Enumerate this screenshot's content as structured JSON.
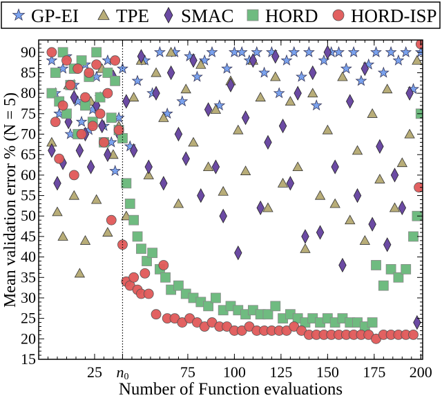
{
  "chart_data": {
    "type": "scatter",
    "xlabel": "Number of Function evaluations",
    "ylabel": "Mean validation error % (N = 5)",
    "xlim": [
      -5,
      201
    ],
    "ylim": [
      15,
      93
    ],
    "xticks": [
      {
        "v": 25,
        "label": "25"
      },
      {
        "v": 40,
        "label": "n0"
      },
      {
        "v": 75,
        "label": "75"
      },
      {
        "v": 100,
        "label": "100"
      },
      {
        "v": 125,
        "label": "125"
      },
      {
        "v": 150,
        "label": "150"
      },
      {
        "v": 175,
        "label": "175"
      },
      {
        "v": 200,
        "label": "200"
      }
    ],
    "yticks": [
      15,
      20,
      25,
      30,
      35,
      40,
      45,
      50,
      55,
      60,
      65,
      70,
      75,
      80,
      85,
      90
    ],
    "vline": {
      "x": 40,
      "style": "dotted"
    },
    "legend": "top",
    "series": [
      {
        "name": "GP-EI",
        "marker": "star",
        "color": "#7aa2ee",
        "points": [
          [
            2,
            88
          ],
          [
            4,
            80
          ],
          [
            6,
            75
          ],
          [
            8,
            86
          ],
          [
            10,
            89
          ],
          [
            12,
            70
          ],
          [
            14,
            82
          ],
          [
            16,
            78
          ],
          [
            18,
            73
          ],
          [
            20,
            87
          ],
          [
            22,
            71
          ],
          [
            24,
            76
          ],
          [
            26,
            84
          ],
          [
            28,
            79
          ],
          [
            30,
            72
          ],
          [
            32,
            88
          ],
          [
            34,
            68
          ],
          [
            36,
            61
          ],
          [
            38,
            74
          ],
          [
            40,
            86
          ],
          [
            44,
            67
          ],
          [
            48,
            83
          ],
          [
            52,
            88
          ],
          [
            56,
            80
          ],
          [
            60,
            90
          ],
          [
            64,
            75
          ],
          [
            68,
            90
          ],
          [
            72,
            78
          ],
          [
            76,
            89
          ],
          [
            80,
            84
          ],
          [
            84,
            88
          ],
          [
            88,
            90
          ],
          [
            92,
            77
          ],
          [
            96,
            86
          ],
          [
            100,
            90
          ],
          [
            104,
            90
          ],
          [
            108,
            88
          ],
          [
            112,
            90
          ],
          [
            116,
            85
          ],
          [
            120,
            90
          ],
          [
            124,
            80
          ],
          [
            128,
            88
          ],
          [
            132,
            90
          ],
          [
            136,
            84
          ],
          [
            140,
            90
          ],
          [
            144,
            77
          ],
          [
            148,
            88
          ],
          [
            152,
            90
          ],
          [
            156,
            90
          ],
          [
            160,
            86
          ],
          [
            164,
            90
          ],
          [
            168,
            83
          ],
          [
            172,
            87
          ],
          [
            176,
            90
          ],
          [
            180,
            85
          ],
          [
            184,
            90
          ],
          [
            188,
            88
          ],
          [
            192,
            90
          ],
          [
            196,
            81
          ],
          [
            200,
            90
          ]
        ]
      },
      {
        "name": "TPE",
        "marker": "triangle",
        "color": "#b8ad78",
        "points": [
          [
            2,
            68
          ],
          [
            5,
            51
          ],
          [
            8,
            45
          ],
          [
            11,
            82
          ],
          [
            14,
            55
          ],
          [
            17,
            36
          ],
          [
            20,
            44
          ],
          [
            23,
            78
          ],
          [
            26,
            54
          ],
          [
            29,
            86
          ],
          [
            32,
            46
          ],
          [
            35,
            65
          ],
          [
            38,
            72
          ],
          [
            42,
            50
          ],
          [
            46,
            79
          ],
          [
            50,
            88
          ],
          [
            54,
            60
          ],
          [
            58,
            85
          ],
          [
            62,
            74
          ],
          [
            66,
            90
          ],
          [
            70,
            53
          ],
          [
            74,
            81
          ],
          [
            78,
            68
          ],
          [
            82,
            87
          ],
          [
            86,
            62
          ],
          [
            90,
            76
          ],
          [
            94,
            56
          ],
          [
            98,
            83
          ],
          [
            102,
            71
          ],
          [
            106,
            61
          ],
          [
            110,
            88
          ],
          [
            114,
            79
          ],
          [
            118,
            52
          ],
          [
            122,
            84
          ],
          [
            126,
            58
          ],
          [
            130,
            78
          ],
          [
            134,
            62
          ],
          [
            138,
            42
          ],
          [
            142,
            80
          ],
          [
            146,
            55
          ],
          [
            150,
            71
          ],
          [
            154,
            53
          ],
          [
            158,
            84
          ],
          [
            162,
            49
          ],
          [
            166,
            66
          ],
          [
            170,
            44
          ],
          [
            174,
            75
          ],
          [
            178,
            59
          ],
          [
            182,
            81
          ],
          [
            186,
            52
          ],
          [
            190,
            63
          ],
          [
            194,
            70
          ],
          [
            198,
            88
          ]
        ]
      },
      {
        "name": "SMAC",
        "marker": "diamond",
        "color": "#6b4aa3",
        "points": [
          [
            2,
            66
          ],
          [
            5,
            58
          ],
          [
            8,
            63
          ],
          [
            11,
            73
          ],
          [
            14,
            79
          ],
          [
            17,
            66
          ],
          [
            20,
            70
          ],
          [
            23,
            62
          ],
          [
            26,
            77
          ],
          [
            29,
            72
          ],
          [
            32,
            65
          ],
          [
            35,
            84
          ],
          [
            38,
            70
          ],
          [
            42,
            78
          ],
          [
            46,
            66
          ],
          [
            50,
            89
          ],
          [
            54,
            62
          ],
          [
            58,
            80
          ],
          [
            62,
            58
          ],
          [
            66,
            85
          ],
          [
            70,
            70
          ],
          [
            74,
            64
          ],
          [
            78,
            88
          ],
          [
            82,
            55
          ],
          [
            86,
            76
          ],
          [
            90,
            62
          ],
          [
            94,
            50
          ],
          [
            98,
            82
          ],
          [
            102,
            41
          ],
          [
            106,
            74
          ],
          [
            110,
            88
          ],
          [
            114,
            52
          ],
          [
            118,
            68
          ],
          [
            122,
            89
          ],
          [
            126,
            72
          ],
          [
            130,
            58
          ],
          [
            134,
            80
          ],
          [
            138,
            45
          ],
          [
            142,
            85
          ],
          [
            146,
            46
          ],
          [
            150,
            90
          ],
          [
            154,
            62
          ],
          [
            158,
            38
          ],
          [
            162,
            78
          ],
          [
            166,
            55
          ],
          [
            170,
            86
          ],
          [
            174,
            48
          ],
          [
            178,
            67
          ],
          [
            182,
            43
          ],
          [
            186,
            60
          ],
          [
            190,
            52
          ],
          [
            194,
            80
          ],
          [
            198,
            24
          ]
        ]
      },
      {
        "name": "HORD",
        "marker": "square",
        "color": "#6fbb80",
        "points": [
          [
            2,
            80
          ],
          [
            4,
            85
          ],
          [
            6,
            78
          ],
          [
            8,
            90
          ],
          [
            10,
            75
          ],
          [
            12,
            82
          ],
          [
            14,
            86
          ],
          [
            16,
            70
          ],
          [
            18,
            88
          ],
          [
            20,
            77
          ],
          [
            22,
            84
          ],
          [
            24,
            73
          ],
          [
            26,
            90
          ],
          [
            28,
            79
          ],
          [
            30,
            68
          ],
          [
            32,
            85
          ],
          [
            34,
            74
          ],
          [
            36,
            83
          ],
          [
            38,
            71
          ],
          [
            40,
            69
          ],
          [
            42,
            58
          ],
          [
            44,
            53
          ],
          [
            46,
            49
          ],
          [
            48,
            45
          ],
          [
            50,
            42
          ],
          [
            53,
            39
          ],
          [
            56,
            41
          ],
          [
            60,
            37
          ],
          [
            63,
            35
          ],
          [
            66,
            32
          ],
          [
            70,
            33
          ],
          [
            74,
            31
          ],
          [
            78,
            30
          ],
          [
            82,
            29
          ],
          [
            86,
            28
          ],
          [
            90,
            30
          ],
          [
            94,
            27
          ],
          [
            98,
            28
          ],
          [
            102,
            27
          ],
          [
            106,
            26
          ],
          [
            110,
            27
          ],
          [
            114,
            26
          ],
          [
            118,
            26
          ],
          [
            122,
            28
          ],
          [
            126,
            25
          ],
          [
            130,
            26
          ],
          [
            134,
            25
          ],
          [
            138,
            24
          ],
          [
            142,
            25
          ],
          [
            146,
            24
          ],
          [
            150,
            25
          ],
          [
            154,
            24
          ],
          [
            158,
            25
          ],
          [
            162,
            24
          ],
          [
            166,
            24
          ],
          [
            170,
            23
          ],
          [
            174,
            24
          ],
          [
            176,
            38
          ],
          [
            180,
            33
          ],
          [
            184,
            37
          ],
          [
            188,
            35
          ],
          [
            192,
            37
          ],
          [
            196,
            45
          ],
          [
            198,
            50
          ],
          [
            200,
            75
          ]
        ]
      },
      {
        "name": "HORD-ISP",
        "marker": "circle",
        "color": "#e05858",
        "points": [
          [
            2,
            90
          ],
          [
            4,
            73
          ],
          [
            6,
            64
          ],
          [
            8,
            77
          ],
          [
            10,
            88
          ],
          [
            12,
            82
          ],
          [
            14,
            60
          ],
          [
            16,
            86
          ],
          [
            18,
            70
          ],
          [
            20,
            79
          ],
          [
            22,
            85
          ],
          [
            24,
            72
          ],
          [
            26,
            87
          ],
          [
            28,
            75
          ],
          [
            30,
            68
          ],
          [
            32,
            80
          ],
          [
            34,
            49
          ],
          [
            36,
            88
          ],
          [
            38,
            71
          ],
          [
            40,
            43
          ],
          [
            42,
            34
          ],
          [
            44,
            33
          ],
          [
            46,
            35
          ],
          [
            48,
            32
          ],
          [
            50,
            31
          ],
          [
            52,
            36
          ],
          [
            54,
            31
          ],
          [
            58,
            26
          ],
          [
            62,
            38
          ],
          [
            64,
            25
          ],
          [
            68,
            25
          ],
          [
            72,
            24
          ],
          [
            76,
            25
          ],
          [
            80,
            24
          ],
          [
            84,
            23
          ],
          [
            88,
            24
          ],
          [
            92,
            23
          ],
          [
            96,
            23
          ],
          [
            100,
            22
          ],
          [
            104,
            22
          ],
          [
            108,
            23
          ],
          [
            112,
            22
          ],
          [
            116,
            22
          ],
          [
            120,
            22
          ],
          [
            124,
            22
          ],
          [
            128,
            22
          ],
          [
            132,
            23
          ],
          [
            136,
            22
          ],
          [
            140,
            21
          ],
          [
            144,
            21
          ],
          [
            148,
            21
          ],
          [
            152,
            21
          ],
          [
            156,
            21
          ],
          [
            160,
            21
          ],
          [
            164,
            21
          ],
          [
            168,
            21
          ],
          [
            172,
            21
          ],
          [
            176,
            20
          ],
          [
            180,
            21
          ],
          [
            184,
            21
          ],
          [
            188,
            21
          ],
          [
            192,
            21
          ],
          [
            196,
            21
          ],
          [
            199,
            57
          ],
          [
            200,
            92
          ]
        ]
      }
    ]
  }
}
